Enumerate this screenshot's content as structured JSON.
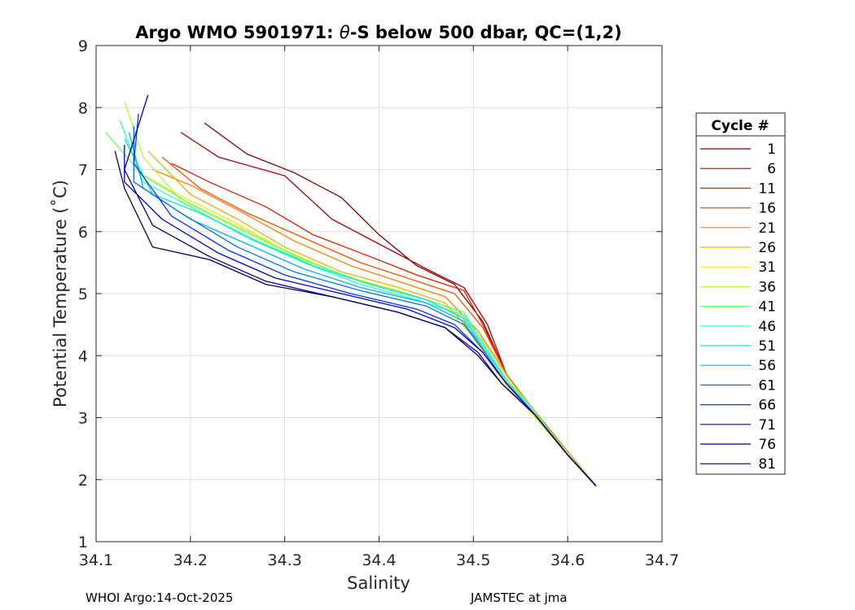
{
  "chart_data": {
    "type": "line",
    "title_prefix": "Argo WMO 5901971: ",
    "title_symbol": "θ",
    "title_suffix": "-S below 500 dbar,  QC=(1,2)",
    "xlabel": "Salinity",
    "ylabel": "Potential Temperature (˚C)",
    "xlim": [
      34.1,
      34.7
    ],
    "ylim": [
      1,
      9
    ],
    "xticks": [
      34.1,
      34.2,
      34.3,
      34.4,
      34.5,
      34.6,
      34.7
    ],
    "xtick_labels": [
      "34.1",
      "34.2",
      "34.3",
      "34.4",
      "34.5",
      "34.6",
      "34.7"
    ],
    "yticks": [
      1,
      2,
      3,
      4,
      5,
      6,
      7,
      8,
      9
    ],
    "ytick_labels": [
      "1",
      "2",
      "3",
      "4",
      "5",
      "6",
      "7",
      "8",
      "9"
    ],
    "grid": true,
    "legend": {
      "title": "Cycle #",
      "position": "right",
      "entries": [
        {
          "label": "1",
          "color": "#800000"
        },
        {
          "label": "6",
          "color": "#b30000"
        },
        {
          "label": "11",
          "color": "#e61a00"
        },
        {
          "label": "16",
          "color": "#ff4d00"
        },
        {
          "label": "21",
          "color": "#ff8000"
        },
        {
          "label": "26",
          "color": "#e6b300"
        },
        {
          "label": "31",
          "color": "#ffe600"
        },
        {
          "label": "36",
          "color": "#b3ff33"
        },
        {
          "label": "41",
          "color": "#66ff66"
        },
        {
          "label": "46",
          "color": "#33ffb3"
        },
        {
          "label": "51",
          "color": "#00e6e6"
        },
        {
          "label": "56",
          "color": "#00b3ff"
        },
        {
          "label": "61",
          "color": "#0073e6"
        },
        {
          "label": "66",
          "color": "#0033ff"
        },
        {
          "label": "71",
          "color": "#0000cc"
        },
        {
          "label": "76",
          "color": "#00008c"
        },
        {
          "label": "81",
          "color": "#000066"
        }
      ]
    },
    "series": [
      {
        "name": "1",
        "color": "#800000",
        "points": [
          [
            34.215,
            7.75
          ],
          [
            34.26,
            7.25
          ],
          [
            34.31,
            6.95
          ],
          [
            34.36,
            6.55
          ],
          [
            34.4,
            5.95
          ],
          [
            34.44,
            5.45
          ],
          [
            34.48,
            5.15
          ],
          [
            34.51,
            4.55
          ],
          [
            34.535,
            3.7
          ],
          [
            34.56,
            3.2
          ],
          [
            34.6,
            2.45
          ],
          [
            34.63,
            1.9
          ]
        ]
      },
      {
        "name": "6",
        "color": "#b30000",
        "points": [
          [
            34.19,
            7.6
          ],
          [
            34.23,
            7.2
          ],
          [
            34.3,
            6.9
          ],
          [
            34.35,
            6.2
          ],
          [
            34.4,
            5.8
          ],
          [
            34.45,
            5.4
          ],
          [
            34.49,
            5.1
          ],
          [
            34.515,
            4.5
          ],
          [
            34.535,
            3.7
          ],
          [
            34.56,
            3.2
          ],
          [
            34.6,
            2.45
          ],
          [
            34.63,
            1.9
          ]
        ]
      },
      {
        "name": "11",
        "color": "#e61a00",
        "points": [
          [
            34.18,
            7.1
          ],
          [
            34.22,
            6.8
          ],
          [
            34.28,
            6.4
          ],
          [
            34.33,
            5.95
          ],
          [
            34.39,
            5.6
          ],
          [
            34.44,
            5.3
          ],
          [
            34.49,
            5.05
          ],
          [
            34.51,
            4.5
          ],
          [
            34.535,
            3.7
          ],
          [
            34.56,
            3.2
          ],
          [
            34.6,
            2.45
          ],
          [
            34.63,
            1.9
          ]
        ]
      },
      {
        "name": "16",
        "color": "#ff4d00",
        "points": [
          [
            34.17,
            7.2
          ],
          [
            34.21,
            6.7
          ],
          [
            34.26,
            6.3
          ],
          [
            34.32,
            5.9
          ],
          [
            34.38,
            5.5
          ],
          [
            34.43,
            5.25
          ],
          [
            34.48,
            5.0
          ],
          [
            34.51,
            4.45
          ],
          [
            34.535,
            3.7
          ],
          [
            34.56,
            3.2
          ],
          [
            34.6,
            2.45
          ],
          [
            34.63,
            1.9
          ]
        ]
      },
      {
        "name": "21",
        "color": "#ff8000",
        "points": [
          [
            34.16,
            7.0
          ],
          [
            34.2,
            6.75
          ],
          [
            34.25,
            6.35
          ],
          [
            34.31,
            5.85
          ],
          [
            34.37,
            5.45
          ],
          [
            34.42,
            5.2
          ],
          [
            34.47,
            4.95
          ],
          [
            34.505,
            4.4
          ],
          [
            34.535,
            3.7
          ],
          [
            34.56,
            3.2
          ],
          [
            34.6,
            2.45
          ],
          [
            34.63,
            1.9
          ]
        ]
      },
      {
        "name": "26",
        "color": "#e6b300",
        "points": [
          [
            34.155,
            7.3
          ],
          [
            34.2,
            6.6
          ],
          [
            34.25,
            6.2
          ],
          [
            34.3,
            5.75
          ],
          [
            34.36,
            5.35
          ],
          [
            34.42,
            5.1
          ],
          [
            34.47,
            4.85
          ],
          [
            34.5,
            4.35
          ],
          [
            34.53,
            3.65
          ],
          [
            34.56,
            3.15
          ],
          [
            34.6,
            2.45
          ],
          [
            34.63,
            1.9
          ]
        ]
      },
      {
        "name": "31",
        "color": "#ffe600",
        "points": [
          [
            34.14,
            7.0
          ],
          [
            34.18,
            6.65
          ],
          [
            34.24,
            6.2
          ],
          [
            34.3,
            5.7
          ],
          [
            34.36,
            5.3
          ],
          [
            34.42,
            5.05
          ],
          [
            34.47,
            4.8
          ],
          [
            34.5,
            4.3
          ],
          [
            34.53,
            3.6
          ],
          [
            34.56,
            3.1
          ],
          [
            34.6,
            2.4
          ],
          [
            34.63,
            1.9
          ]
        ]
      },
      {
        "name": "36",
        "color": "#b3ff33",
        "points": [
          [
            34.13,
            8.1
          ],
          [
            34.15,
            7.2
          ],
          [
            34.19,
            6.5
          ],
          [
            34.25,
            6.05
          ],
          [
            34.31,
            5.6
          ],
          [
            34.37,
            5.25
          ],
          [
            34.43,
            5.0
          ],
          [
            34.48,
            4.75
          ],
          [
            34.51,
            4.25
          ],
          [
            34.535,
            3.65
          ],
          [
            34.565,
            3.1
          ],
          [
            34.6,
            2.4
          ],
          [
            34.63,
            1.9
          ]
        ]
      },
      {
        "name": "41",
        "color": "#66ff66",
        "points": [
          [
            34.11,
            7.6
          ],
          [
            34.15,
            6.9
          ],
          [
            34.2,
            6.45
          ],
          [
            34.26,
            6.0
          ],
          [
            34.32,
            5.55
          ],
          [
            34.38,
            5.2
          ],
          [
            34.44,
            4.95
          ],
          [
            34.49,
            4.7
          ],
          [
            34.51,
            4.2
          ],
          [
            34.535,
            3.6
          ],
          [
            34.565,
            3.1
          ],
          [
            34.6,
            2.4
          ],
          [
            34.63,
            1.9
          ]
        ]
      },
      {
        "name": "46",
        "color": "#33ffb3",
        "points": [
          [
            34.125,
            7.8
          ],
          [
            34.15,
            6.8
          ],
          [
            34.2,
            6.4
          ],
          [
            34.26,
            5.9
          ],
          [
            34.32,
            5.5
          ],
          [
            34.38,
            5.15
          ],
          [
            34.44,
            4.9
          ],
          [
            34.49,
            4.65
          ],
          [
            34.51,
            4.2
          ],
          [
            34.535,
            3.6
          ],
          [
            34.565,
            3.1
          ],
          [
            34.6,
            2.4
          ],
          [
            34.63,
            1.9
          ]
        ]
      },
      {
        "name": "51",
        "color": "#00e6e6",
        "points": [
          [
            34.13,
            7.5
          ],
          [
            34.16,
            6.6
          ],
          [
            34.21,
            6.3
          ],
          [
            34.27,
            5.85
          ],
          [
            34.33,
            5.45
          ],
          [
            34.39,
            5.15
          ],
          [
            34.45,
            4.9
          ],
          [
            34.49,
            4.6
          ],
          [
            34.51,
            4.15
          ],
          [
            34.535,
            3.6
          ],
          [
            34.565,
            3.05
          ],
          [
            34.6,
            2.4
          ],
          [
            34.63,
            1.9
          ]
        ]
      },
      {
        "name": "56",
        "color": "#00b3ff",
        "points": [
          [
            34.135,
            7.6
          ],
          [
            34.15,
            6.7
          ],
          [
            34.2,
            6.2
          ],
          [
            34.26,
            5.8
          ],
          [
            34.32,
            5.4
          ],
          [
            34.38,
            5.1
          ],
          [
            34.45,
            4.85
          ],
          [
            34.49,
            4.55
          ],
          [
            34.51,
            4.1
          ],
          [
            34.535,
            3.55
          ],
          [
            34.565,
            3.05
          ],
          [
            34.6,
            2.4
          ],
          [
            34.63,
            1.9
          ]
        ]
      },
      {
        "name": "61",
        "color": "#0073e6",
        "points": [
          [
            34.14,
            7.7
          ],
          [
            34.14,
            6.8
          ],
          [
            34.19,
            6.3
          ],
          [
            34.25,
            5.75
          ],
          [
            34.31,
            5.35
          ],
          [
            34.38,
            5.05
          ],
          [
            34.45,
            4.8
          ],
          [
            34.49,
            4.5
          ],
          [
            34.51,
            4.1
          ],
          [
            34.535,
            3.55
          ],
          [
            34.565,
            3.05
          ],
          [
            34.6,
            2.4
          ],
          [
            34.63,
            1.9
          ]
        ]
      },
      {
        "name": "66",
        "color": "#0033ff",
        "points": [
          [
            34.145,
            7.9
          ],
          [
            34.14,
            7.1
          ],
          [
            34.18,
            6.25
          ],
          [
            34.24,
            5.7
          ],
          [
            34.3,
            5.3
          ],
          [
            34.37,
            5.0
          ],
          [
            34.44,
            4.75
          ],
          [
            34.48,
            4.5
          ],
          [
            34.51,
            4.05
          ],
          [
            34.535,
            3.55
          ],
          [
            34.565,
            3.05
          ],
          [
            34.6,
            2.4
          ],
          [
            34.63,
            1.9
          ]
        ]
      },
      {
        "name": "71",
        "color": "#0000cc",
        "points": [
          [
            34.13,
            7.4
          ],
          [
            34.13,
            6.8
          ],
          [
            34.17,
            6.2
          ],
          [
            34.23,
            5.65
          ],
          [
            34.29,
            5.25
          ],
          [
            34.36,
            5.0
          ],
          [
            34.43,
            4.75
          ],
          [
            34.48,
            4.45
          ],
          [
            34.51,
            4.05
          ],
          [
            34.535,
            3.55
          ],
          [
            34.565,
            3.05
          ],
          [
            34.6,
            2.4
          ],
          [
            34.63,
            1.9
          ]
        ]
      },
      {
        "name": "76",
        "color": "#00008c",
        "points": [
          [
            34.155,
            8.2
          ],
          [
            34.13,
            7.0
          ],
          [
            34.16,
            6.1
          ],
          [
            34.22,
            5.6
          ],
          [
            34.28,
            5.2
          ],
          [
            34.35,
            4.95
          ],
          [
            34.42,
            4.7
          ],
          [
            34.47,
            4.45
          ],
          [
            34.505,
            4.05
          ],
          [
            34.53,
            3.55
          ],
          [
            34.565,
            3.05
          ],
          [
            34.6,
            2.4
          ],
          [
            34.63,
            1.9
          ]
        ]
      },
      {
        "name": "81",
        "color": "#000066",
        "points": [
          [
            34.12,
            7.3
          ],
          [
            34.13,
            6.7
          ],
          [
            34.16,
            5.75
          ],
          [
            34.22,
            5.55
          ],
          [
            34.28,
            5.15
          ],
          [
            34.35,
            4.95
          ],
          [
            34.42,
            4.7
          ],
          [
            34.47,
            4.45
          ],
          [
            34.505,
            4.0
          ],
          [
            34.53,
            3.55
          ],
          [
            34.565,
            3.05
          ],
          [
            34.6,
            2.4
          ],
          [
            34.63,
            1.9
          ]
        ]
      }
    ]
  },
  "footer": {
    "left": "WHOI Argo:14-Oct-2025",
    "right": "JAMSTEC at jma"
  }
}
